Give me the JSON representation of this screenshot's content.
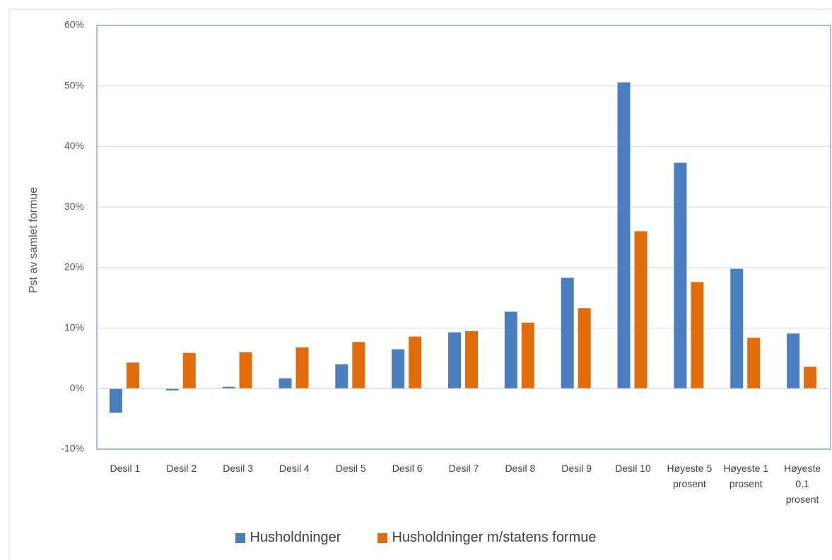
{
  "chart_data": {
    "type": "bar",
    "y_axis_label": "Pst av samlet formue",
    "categories": [
      "Desil 1",
      "Desil 2",
      "Desil 3",
      "Desil 4",
      "Desil 5",
      "Desil 6",
      "Desil 7",
      "Desil 8",
      "Desil 9",
      "Desil 10",
      "Høyeste 5 prosent",
      "Høyeste 1 prosent",
      "Høyeste 0,1 prosent"
    ],
    "series": [
      {
        "name": "Husholdninger",
        "color": "#4a7ebf",
        "values": [
          -4.0,
          -0.3,
          0.3,
          1.7,
          4.0,
          6.5,
          9.3,
          12.7,
          18.3,
          50.6,
          37.3,
          19.8,
          9.1
        ]
      },
      {
        "name": "Husholdninger m/statens formue",
        "color": "#e36c0a",
        "values": [
          4.3,
          5.9,
          6.0,
          6.8,
          7.7,
          8.6,
          9.5,
          10.9,
          13.3,
          26.0,
          17.6,
          8.4,
          3.6
        ]
      }
    ],
    "ylim": [
      -10,
      60
    ],
    "yticks": [
      {
        "value": -10,
        "label": "-10%"
      },
      {
        "value": 0,
        "label": "0%"
      },
      {
        "value": 10,
        "label": "10%"
      },
      {
        "value": 20,
        "label": "20%"
      },
      {
        "value": 30,
        "label": "30%"
      },
      {
        "value": 40,
        "label": "40%"
      },
      {
        "value": 50,
        "label": "50%"
      },
      {
        "value": 60,
        "label": "60%"
      }
    ],
    "grid": true
  }
}
